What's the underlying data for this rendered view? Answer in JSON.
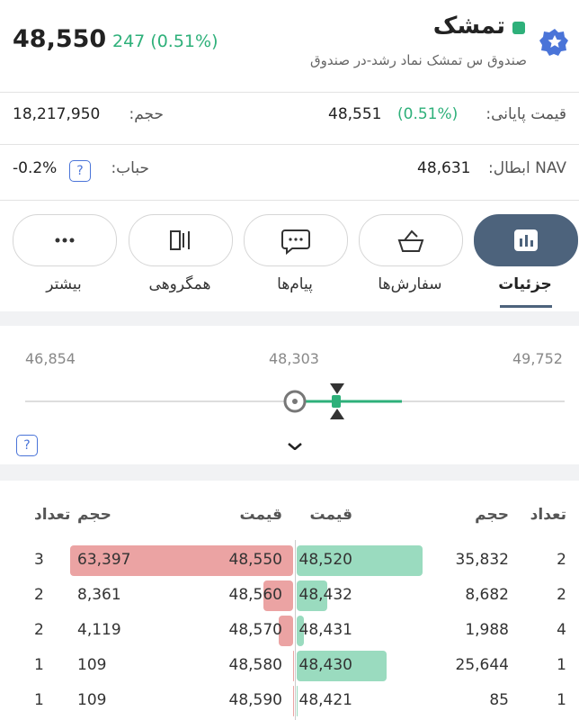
{
  "header": {
    "symbol": "تمشک",
    "subtitle": "صندوق س تمشک نماد رشد-در صندوق",
    "last_price": "48,550",
    "change": "247 (0.51%)"
  },
  "stats": {
    "closing_label": "قیمت پایانی:",
    "closing_change": "(0.51%)",
    "closing_price": "48,551",
    "volume_label": "حجم:",
    "volume": "18,217,950",
    "nav_label": "NAV ابطال:",
    "nav": "48,631",
    "bubble_label": "حباب:",
    "bubble": "-0.2%"
  },
  "tabs": [
    "جزئیات",
    "سفارش‌ها",
    "پیام‌ها",
    "همگروهی",
    "بیشتر"
  ],
  "range": {
    "low": "46,854",
    "mid": "48,303",
    "high": "49,752"
  },
  "order_book": {
    "headers": [
      "تعداد",
      "حجم",
      "قیمت",
      "قیمت",
      "حجم",
      "تعداد"
    ],
    "rows": [
      [
        "2",
        "35,832",
        "48,520",
        "48,550",
        "63,397",
        "3"
      ],
      [
        "2",
        "8,682",
        "48,432",
        "48,560",
        "8,361",
        "2"
      ],
      [
        "4",
        "1,988",
        "48,431",
        "48,570",
        "4,119",
        "2"
      ],
      [
        "1",
        "25,644",
        "48,430",
        "48,580",
        "109",
        "1"
      ],
      [
        "1",
        "85",
        "48,421",
        "48,590",
        "109",
        "1"
      ]
    ]
  }
}
